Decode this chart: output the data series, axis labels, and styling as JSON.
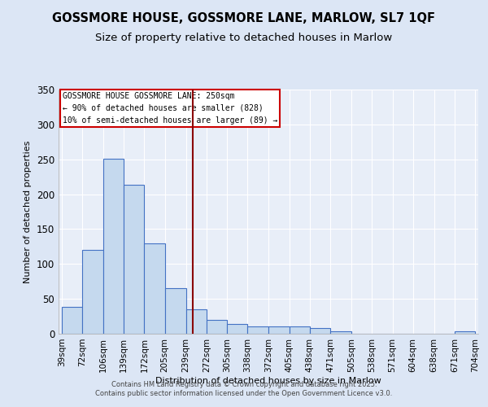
{
  "title": "GOSSMORE HOUSE, GOSSMORE LANE, MARLOW, SL7 1QF",
  "subtitle": "Size of property relative to detached houses in Marlow",
  "xlabel": "Distribution of detached houses by size in Marlow",
  "ylabel": "Number of detached properties",
  "bar_color": "#c5d9ee",
  "bar_edge_color": "#4472c4",
  "property_line_color": "#8b0000",
  "property_size": 250,
  "annotation_lines": [
    "GOSSMORE HOUSE GOSSMORE LANE: 250sqm",
    "← 90% of detached houses are smaller (828)",
    "10% of semi-detached houses are larger (89) →"
  ],
  "bins": [
    39,
    72,
    106,
    139,
    172,
    205,
    239,
    272,
    305,
    338,
    372,
    405,
    438,
    471,
    505,
    538,
    571,
    604,
    638,
    671,
    704
  ],
  "counts": [
    38,
    120,
    251,
    213,
    129,
    65,
    35,
    20,
    14,
    10,
    10,
    10,
    8,
    3,
    0,
    0,
    0,
    0,
    0,
    3
  ],
  "ylim": [
    0,
    350
  ],
  "yticks": [
    0,
    50,
    100,
    150,
    200,
    250,
    300,
    350
  ],
  "fig_bg_color": "#dce6f5",
  "ax_bg_color": "#e8eef8",
  "grid_color": "#ffffff",
  "footer_text": "Contains HM Land Registry data © Crown copyright and database right 2025.\nContains public sector information licensed under the Open Government Licence v3.0.",
  "title_fontsize": 10.5,
  "subtitle_fontsize": 9.5,
  "ylabel_fontsize": 8,
  "xlabel_fontsize": 8
}
